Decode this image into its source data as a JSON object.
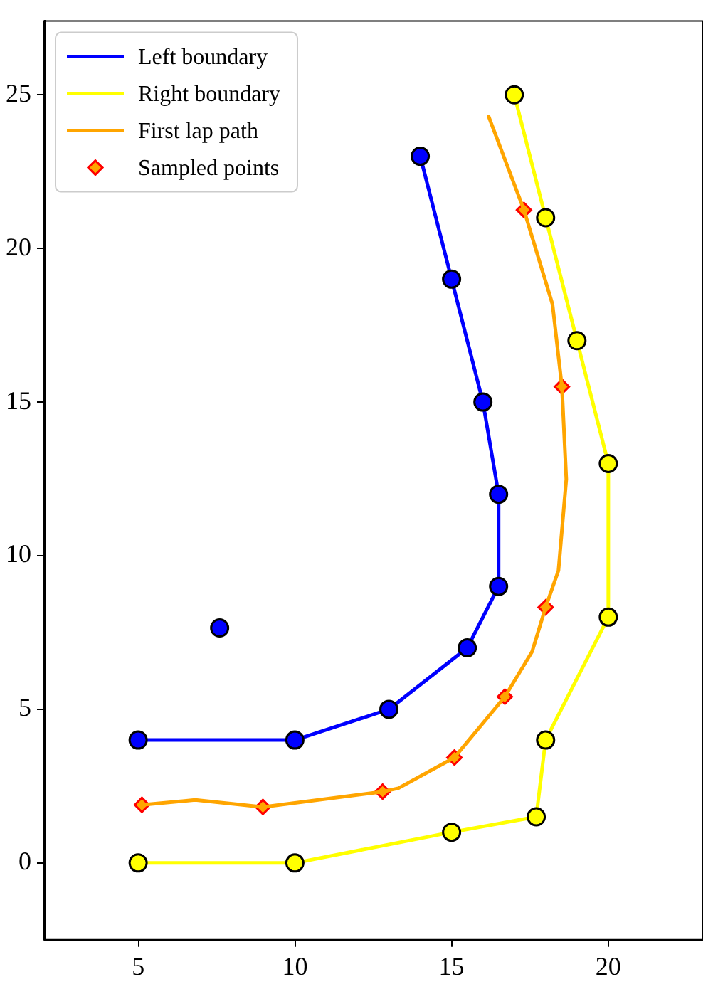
{
  "chart_data": {
    "type": "line",
    "xlim": [
      2,
      23
    ],
    "ylim": [
      -2.5,
      27.4
    ],
    "xticks": [
      5,
      10,
      15,
      20
    ],
    "yticks": [
      0,
      5,
      10,
      15,
      20,
      25
    ],
    "grid": false,
    "legend": "top left",
    "line_style": "solid",
    "series": [
      {
        "name": "Left boundary",
        "marker": "circle",
        "color": "#0000ff",
        "x": [
          5,
          10,
          13,
          15.5,
          16.5,
          16.5,
          16,
          15,
          14
        ],
        "values": [
          4,
          4,
          5,
          7,
          9,
          12,
          15,
          19,
          23
        ]
      },
      {
        "type": "scatter",
        "marker": "circle",
        "color": "#0000ff",
        "x": [
          7.6
        ],
        "values": [
          7.65
        ]
      },
      {
        "name": "Right boundary",
        "marker": "circle",
        "color": "#ffff00",
        "x": [
          5,
          10,
          15,
          17.7,
          18,
          20,
          20,
          19,
          18,
          17
        ],
        "values": [
          0,
          0,
          1,
          1.5,
          4,
          8,
          13,
          17,
          21,
          25
        ]
      },
      {
        "name": "First lap path",
        "marker": "none",
        "color": "#ffa500",
        "x": [
          5.12,
          6.82,
          8.98,
          12.8,
          13.3,
          15.09,
          16.7,
          17.57,
          18.0,
          18.41,
          18.66,
          18.52,
          18.22,
          17.31,
          16.18
        ],
        "values": [
          1.89,
          2.05,
          1.82,
          2.32,
          2.43,
          3.43,
          5.41,
          6.88,
          8.32,
          9.52,
          12.49,
          15.5,
          18.18,
          21.25,
          24.3
        ]
      },
      {
        "name": "Sampled points",
        "type": "scatter",
        "marker": "diamond",
        "color": "#ffa500",
        "x": [
          5.12,
          8.98,
          12.8,
          15.09,
          16.7,
          18.0,
          18.52,
          17.31
        ],
        "values": [
          1.89,
          1.82,
          2.32,
          3.43,
          5.41,
          8.32,
          15.5,
          21.25
        ]
      }
    ]
  }
}
